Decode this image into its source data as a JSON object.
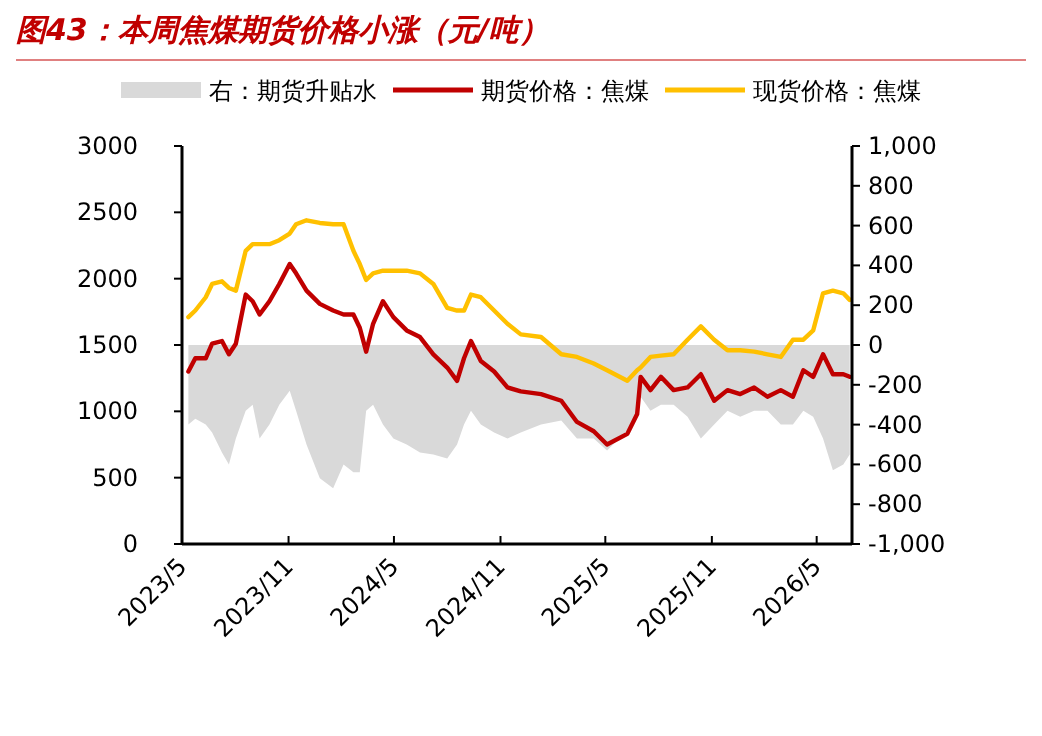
{
  "chart_data": {
    "type": "line",
    "title": "图43：本周焦煤期货价格小涨（元/吨）",
    "legend": "top",
    "x": [
      "2023-05-12",
      "2023-05-24",
      "2023-06-11",
      "2023-06-22",
      "2023-07-09",
      "2023-07-21",
      "2023-08-02",
      "2023-08-19",
      "2023-08-31",
      "2023-09-12",
      "2023-09-29",
      "2023-10-16",
      "2023-11-03",
      "2023-11-14",
      "2023-12-02",
      "2023-12-25",
      "2024-01-17",
      "2024-02-04",
      "2024-02-21",
      "2024-03-03",
      "2024-03-14",
      "2024-03-26",
      "2024-04-12",
      "2024-04-30",
      "2024-05-23",
      "2024-06-15",
      "2024-07-08",
      "2024-08-01",
      "2024-08-18",
      "2024-08-30",
      "2024-09-11",
      "2024-09-28",
      "2024-10-21",
      "2024-11-13",
      "2024-12-06",
      "2025-01-10",
      "2025-02-14",
      "2025-03-13",
      "2025-04-11",
      "2025-05-04",
      "2025-06-08",
      "2025-06-25",
      "2025-07-01",
      "2025-07-18",
      "2025-08-05",
      "2025-08-27",
      "2025-09-20",
      "2025-10-13",
      "2025-11-05",
      "2025-11-28",
      "2025-12-20",
      "2026-01-13",
      "2026-02-05",
      "2026-02-28",
      "2026-03-21",
      "2026-04-08",
      "2026-04-25",
      "2026-05-12",
      "2026-05-29",
      "2026-06-16",
      "2026-06-27"
    ],
    "series": [
      {
        "name": "右：期货升贴水",
        "type": "area",
        "axis": "y2",
        "color": "#d9d9d9",
        "values": [
          -400,
          -370,
          -400,
          -440,
          -540,
          -600,
          -470,
          -330,
          -300,
          -470,
          -400,
          -300,
          -230,
          -330,
          -500,
          -670,
          -720,
          -600,
          -640,
          -640,
          -330,
          -300,
          -400,
          -470,
          -500,
          -540,
          -550,
          -570,
          -500,
          -400,
          -330,
          -400,
          -440,
          -470,
          -440,
          -400,
          -380,
          -470,
          -470,
          -530,
          -430,
          -330,
          -260,
          -330,
          -300,
          -300,
          -360,
          -470,
          -400,
          -330,
          -360,
          -330,
          -330,
          -400,
          -400,
          -330,
          -360,
          -470,
          -630,
          -600,
          -550
        ]
      },
      {
        "name": "期货价格：焦煤",
        "type": "line",
        "color": "#c00000",
        "values": [
          1300,
          1400,
          1400,
          1510,
          1530,
          1430,
          1510,
          1880,
          1830,
          1730,
          1830,
          1960,
          2110,
          2040,
          1910,
          1810,
          1760,
          1730,
          1730,
          1630,
          1450,
          1660,
          1830,
          1710,
          1610,
          1560,
          1430,
          1330,
          1230,
          1400,
          1530,
          1380,
          1300,
          1180,
          1150,
          1130,
          1080,
          920,
          850,
          750,
          830,
          980,
          1260,
          1160,
          1260,
          1160,
          1180,
          1280,
          1080,
          1160,
          1130,
          1180,
          1110,
          1160,
          1110,
          1310,
          1260,
          1430,
          1280,
          1280,
          1260
        ]
      },
      {
        "name": "现货价格：焦煤",
        "type": "line",
        "color": "#ffc000",
        "values": [
          1710,
          1760,
          1860,
          1960,
          1980,
          1930,
          1910,
          2210,
          2260,
          2260,
          2260,
          2290,
          2340,
          2410,
          2440,
          2420,
          2410,
          2410,
          2210,
          2110,
          1990,
          2040,
          2060,
          2060,
          2060,
          2040,
          1960,
          1780,
          1760,
          1760,
          1880,
          1860,
          1760,
          1660,
          1580,
          1560,
          1430,
          1410,
          1360,
          1310,
          1230,
          1310,
          1330,
          1410,
          1420,
          1430,
          1540,
          1640,
          1540,
          1460,
          1460,
          1450,
          1430,
          1410,
          1540,
          1540,
          1610,
          1890,
          1910,
          1890,
          1840
        ]
      }
    ],
    "xlim": [
      "2023-05-01",
      "2026-07-01"
    ],
    "xticks": [
      {
        "value": "2023-05",
        "label": "2023/5"
      },
      {
        "value": "2023-11",
        "label": "2023/11"
      },
      {
        "value": "2024-05",
        "label": "2024/5"
      },
      {
        "value": "2024-11",
        "label": "2024/11"
      },
      {
        "value": "2025-05",
        "label": "2025/5"
      },
      {
        "value": "2025-11",
        "label": "2025/11"
      },
      {
        "value": "2026-05",
        "label": "2026/5"
      }
    ],
    "ylim": [
      0,
      3000
    ],
    "yticks": [
      0,
      500,
      1000,
      1500,
      2000,
      2500,
      3000
    ],
    "y2lim": [
      -1000,
      1000
    ],
    "y2ticks": [
      {
        "value": -1000,
        "label": "-1,000"
      },
      -800,
      -600,
      -400,
      -200,
      0,
      200,
      400,
      600,
      800,
      {
        "value": 1000,
        "label": "1,000"
      }
    ]
  }
}
